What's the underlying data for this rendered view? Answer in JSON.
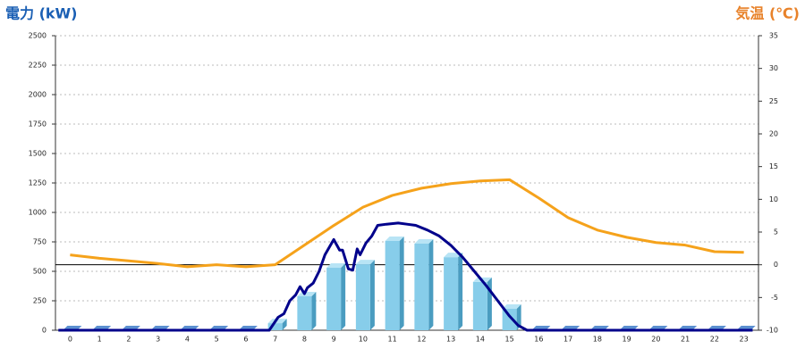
{
  "chart_data": {
    "type": "combo",
    "ylabel": "電力 (kW)",
    "y2label": "気温 (℃)",
    "categories": [
      "0",
      "1",
      "2",
      "3",
      "4",
      "5",
      "6",
      "7",
      "8",
      "9",
      "10",
      "11",
      "12",
      "13",
      "14",
      "15",
      "16",
      "17",
      "18",
      "19",
      "20",
      "21",
      "22",
      "23"
    ],
    "ylim": [
      0,
      2500
    ],
    "yticks": [
      0,
      250,
      500,
      750,
      1000,
      1250,
      1500,
      1750,
      2000,
      2250,
      2500
    ],
    "y2lim": [
      -10,
      35
    ],
    "y2ticks": [
      -10,
      -5,
      0,
      5,
      10,
      15,
      20,
      25,
      30,
      35
    ],
    "grid": true,
    "series": [
      {
        "type": "bar",
        "color": "#87cdea",
        "values": [
          0,
          0,
          0,
          0,
          0,
          0,
          0,
          60,
          288,
          530,
          560,
          758,
          735,
          620,
          410,
          182,
          0,
          0,
          0,
          0,
          0,
          0,
          0,
          0
        ]
      },
      {
        "type": "line",
        "color": "#00008b",
        "x": [
          -0.4,
          6.8,
          7.1,
          7.3,
          7.5,
          7.7,
          7.85,
          8.0,
          8.1,
          8.3,
          8.5,
          8.7,
          9.0,
          9.2,
          9.3,
          9.5,
          9.65,
          9.8,
          9.9,
          10.1,
          10.3,
          10.5,
          10.8,
          11.2,
          11.5,
          11.8,
          12.2,
          12.6,
          13.0,
          13.4,
          13.8,
          14.2,
          14.6,
          15.0,
          15.3,
          15.6,
          23.3
        ],
        "values": [
          0,
          0,
          110,
          140,
          250,
          300,
          370,
          310,
          360,
          400,
          500,
          640,
          770,
          680,
          680,
          520,
          510,
          690,
          640,
          740,
          800,
          890,
          900,
          910,
          900,
          890,
          850,
          800,
          720,
          620,
          500,
          380,
          250,
          120,
          40,
          0,
          0
        ]
      },
      {
        "type": "line",
        "axis": "y2",
        "color": "#f5a21b",
        "values": [
          1.5,
          1.0,
          0.6,
          0.2,
          -0.3,
          0,
          -0.3,
          0,
          3,
          6,
          8.8,
          10.6,
          11.7,
          12.4,
          12.8,
          13,
          10.2,
          7.2,
          5.3,
          4.2,
          3.4,
          3,
          2,
          1.9
        ]
      }
    ]
  }
}
